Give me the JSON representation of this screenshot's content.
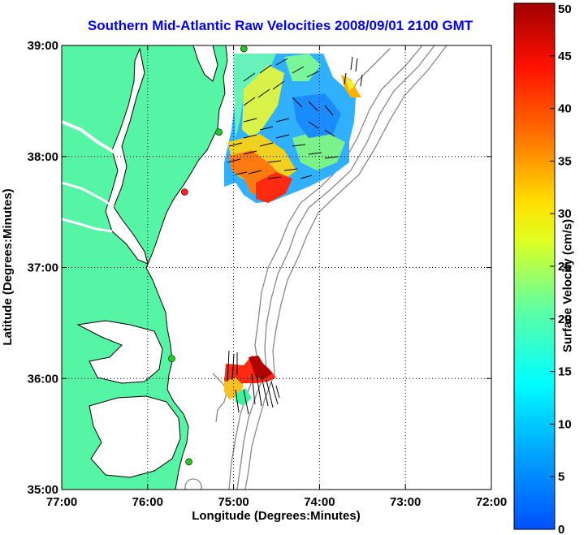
{
  "title": "Southern Mid-Atlantic Raw Velocities 2008/09/01 2100 GMT",
  "map": {
    "xlabel": "Longitude (Degrees:Minutes)",
    "ylabel": "Latitude (Degrees:Minutes)",
    "x_ticks": [
      "77:00",
      "76:00",
      "75:00",
      "74:00",
      "73:00",
      "72:00"
    ],
    "y_ticks": [
      "39:00",
      "38:00",
      "37:00",
      "36:00",
      "35:00"
    ],
    "lon_range": [
      -77,
      -72
    ],
    "lat_range": [
      35,
      39
    ],
    "land_color": "#55f5a5",
    "water_color": "#ffffff",
    "grid": "dotted",
    "stations": [
      {
        "lon": -74.88,
        "lat": 38.97,
        "color": "#22cc22"
      },
      {
        "lon": -75.17,
        "lat": 38.22,
        "color": "#22cc22"
      },
      {
        "lon": -75.57,
        "lat": 37.68,
        "color": "#ff2222"
      },
      {
        "lon": -75.72,
        "lat": 36.18,
        "color": "#22cc22"
      },
      {
        "lon": -75.52,
        "lat": 35.25,
        "color": "#22cc22"
      }
    ]
  },
  "colorbar": {
    "label": "Surface Velocity (cm/s)",
    "min": 0,
    "max": 50,
    "ticks": [
      "0",
      "5",
      "10",
      "15",
      "20",
      "25",
      "30",
      "35",
      "40",
      "45",
      "50"
    ],
    "colormap": "jet"
  }
}
